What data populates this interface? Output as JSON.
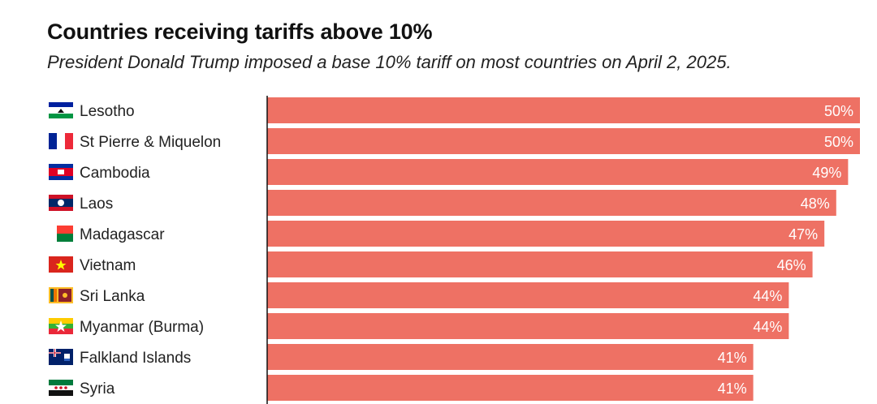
{
  "chart_data": {
    "type": "bar",
    "orientation": "horizontal",
    "title": "Countries receiving tariffs above 10%",
    "subtitle": "President Donald Trump imposed a base 10% tariff on most countries on April 2, 2025.",
    "categories": [
      "Lesotho",
      "St Pierre & Miquelon",
      "Cambodia",
      "Laos",
      "Madagascar",
      "Vietnam",
      "Sri Lanka",
      "Myanmar (Burma)",
      "Falkland Islands",
      "Syria"
    ],
    "values": [
      50,
      50,
      49,
      48,
      47,
      46,
      44,
      44,
      41,
      41
    ],
    "value_labels": [
      "50%",
      "50%",
      "49%",
      "48%",
      "47%",
      "46%",
      "44%",
      "44%",
      "41%",
      "41%"
    ],
    "xlim": [
      0,
      50
    ],
    "grid": false,
    "bar_color": "#ee7164"
  },
  "flags": [
    "lesotho-flag-icon",
    "france-flag-icon",
    "cambodia-flag-icon",
    "laos-flag-icon",
    "madagascar-flag-icon",
    "vietnam-flag-icon",
    "sri-lanka-flag-icon",
    "myanmar-flag-icon",
    "falkland-islands-flag-icon",
    "syria-flag-icon"
  ]
}
